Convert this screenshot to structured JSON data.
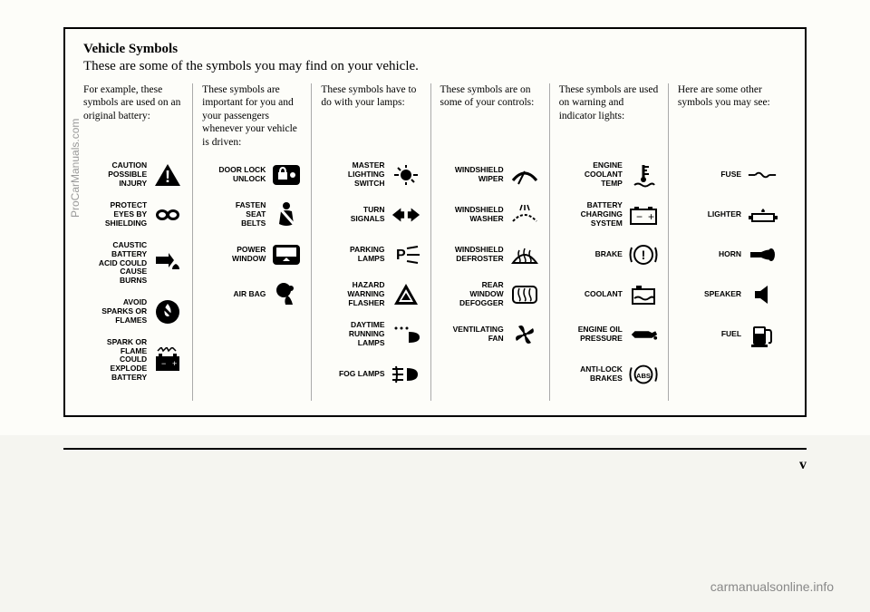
{
  "title": "Vehicle Symbols",
  "subtitle": "These are some of the symbols you may find on your vehicle.",
  "pageNumber": "v",
  "watermarkBottom": "carmanualsonline.info",
  "watermarkSide": "ProCarManuals.com",
  "columns": [
    {
      "header": "For example, these symbols are used on an original battery:",
      "items": [
        {
          "label": "CAUTION\nPOSSIBLE\nINJURY",
          "icon": "caution-triangle"
        },
        {
          "label": "PROTECT\nEYES BY\nSHIELDING",
          "icon": "goggles"
        },
        {
          "label": "CAUSTIC\nBATTERY\nACID COULD\nCAUSE\nBURNS",
          "icon": "acid-hand"
        },
        {
          "label": "AVOID\nSPARKS OR\nFLAMES",
          "icon": "no-flame"
        },
        {
          "label": "SPARK OR\nFLAME\nCOULD\nEXPLODE\nBATTERY",
          "icon": "battery-explode"
        }
      ]
    },
    {
      "header": "These symbols are important for you and your passengers whenever your vehicle is driven:",
      "items": [
        {
          "label": "DOOR LOCK\nUNLOCK",
          "icon": "door-lock"
        },
        {
          "label": "FASTEN\nSEAT\nBELTS",
          "icon": "seatbelt"
        },
        {
          "label": "POWER\nWINDOW",
          "icon": "power-window"
        },
        {
          "label": "AIR BAG",
          "icon": "airbag"
        }
      ]
    },
    {
      "header": "These symbols have to do with your lamps:",
      "items": [
        {
          "label": "MASTER\nLIGHTING\nSWITCH",
          "icon": "master-light"
        },
        {
          "label": "TURN\nSIGNALS",
          "icon": "turn-signals"
        },
        {
          "label": "PARKING\nLAMPS",
          "icon": "parking-lamps"
        },
        {
          "label": "HAZARD\nWARNING\nFLASHER",
          "icon": "hazard"
        },
        {
          "label": "DAYTIME\nRUNNING\nLAMPS",
          "icon": "drl"
        },
        {
          "label": "FOG LAMPS",
          "icon": "fog-lamps"
        }
      ]
    },
    {
      "header": "These symbols are on some of your controls:",
      "items": [
        {
          "label": "WINDSHIELD\nWIPER",
          "icon": "wiper"
        },
        {
          "label": "WINDSHIELD\nWASHER",
          "icon": "washer"
        },
        {
          "label": "WINDSHIELD\nDEFROSTER",
          "icon": "defroster-front"
        },
        {
          "label": "REAR\nWINDOW\nDEFOGGER",
          "icon": "defroster-rear"
        },
        {
          "label": "VENTILATING\nFAN",
          "icon": "fan"
        }
      ]
    },
    {
      "header": "These symbols are used on warning and indicator lights:",
      "items": [
        {
          "label": "ENGINE\nCOOLANT\nTEMP",
          "icon": "coolant-temp"
        },
        {
          "label": "BATTERY\nCHARGING\nSYSTEM",
          "icon": "battery"
        },
        {
          "label": "BRAKE",
          "icon": "brake"
        },
        {
          "label": "COOLANT",
          "icon": "coolant"
        },
        {
          "label": "ENGINE OIL\nPRESSURE",
          "icon": "oil"
        },
        {
          "label": "ANTI-LOCK\nBRAKES",
          "icon": "abs"
        }
      ]
    },
    {
      "header": "Here are some other symbols you may see:",
      "items": [
        {
          "label": "FUSE",
          "icon": "fuse"
        },
        {
          "label": "LIGHTER",
          "icon": "lighter"
        },
        {
          "label": "HORN",
          "icon": "horn"
        },
        {
          "label": "SPEAKER",
          "icon": "speaker"
        },
        {
          "label": "FUEL",
          "icon": "fuel"
        }
      ]
    }
  ]
}
